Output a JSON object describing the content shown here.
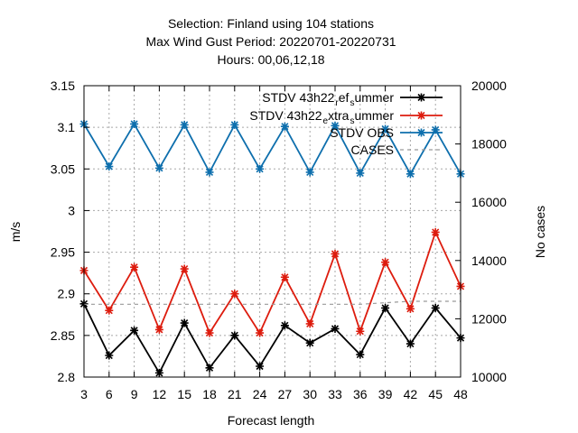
{
  "chart_data": {
    "type": "line",
    "title_lines": [
      "Selection: Finland using   104 stations",
      "Max Wind Gust   Period: 20220701-20220731",
      "Hours:  00,06,12,18"
    ],
    "xlabel": "Forecast length",
    "ylabel": "m/s",
    "y2label": "No cases",
    "x": [
      3,
      6,
      9,
      12,
      15,
      18,
      21,
      24,
      27,
      30,
      33,
      36,
      39,
      42,
      45,
      48
    ],
    "xlim": [
      3,
      48
    ],
    "ylim": [
      2.8,
      3.15
    ],
    "y2lim": [
      10000,
      20000
    ],
    "x_ticks": [
      "3",
      "6",
      "9",
      "12",
      "15",
      "18",
      "21",
      "24",
      "27",
      "30",
      "33",
      "36",
      "39",
      "42",
      "45",
      "48"
    ],
    "y_ticks": [
      "2.8",
      "2.85",
      "2.9",
      "2.95",
      "3",
      "3.05",
      "3.1",
      "3.15"
    ],
    "y2_ticks": [
      "10000",
      "12000",
      "14000",
      "16000",
      "18000",
      "20000"
    ],
    "grid": true,
    "legend_position": "top-right",
    "series": [
      {
        "name": "STDV 43h22_ref_summer",
        "legend_parts": [
          "STDV 43h22",
          "r",
          "ef",
          "s",
          "ummer"
        ],
        "color": "#000000",
        "axis": "y",
        "values": [
          2.888,
          2.826,
          2.856,
          2.805,
          2.865,
          2.811,
          2.85,
          2.813,
          2.862,
          2.841,
          2.858,
          2.827,
          2.883,
          2.84,
          2.883,
          2.847
        ]
      },
      {
        "name": "STDV 43h22_extra_summer",
        "legend_parts": [
          "STDV 43h22",
          "e",
          "xtra",
          "s",
          "ummer"
        ],
        "color": "#dd1c0e",
        "axis": "y",
        "values": [
          2.928,
          2.88,
          2.932,
          2.857,
          2.93,
          2.853,
          2.9,
          2.853,
          2.92,
          2.864,
          2.948,
          2.855,
          2.938,
          2.882,
          2.974,
          2.909
        ]
      },
      {
        "name": "STDV OBS",
        "color": "#0e6fad",
        "axis": "y",
        "values": [
          3.104,
          3.053,
          3.104,
          3.051,
          3.103,
          3.046,
          3.103,
          3.05,
          3.101,
          3.046,
          3.102,
          3.045,
          3.098,
          3.044,
          3.097,
          3.044
        ]
      },
      {
        "name": "CASES",
        "color": "#999999",
        "axis": "y2",
        "dashed": true,
        "values": [
          12500,
          12500,
          12500,
          12500,
          12500,
          12500,
          12500,
          12500,
          12500,
          12500,
          12500,
          12500,
          12550,
          12600,
          12600,
          12600
        ]
      }
    ]
  }
}
